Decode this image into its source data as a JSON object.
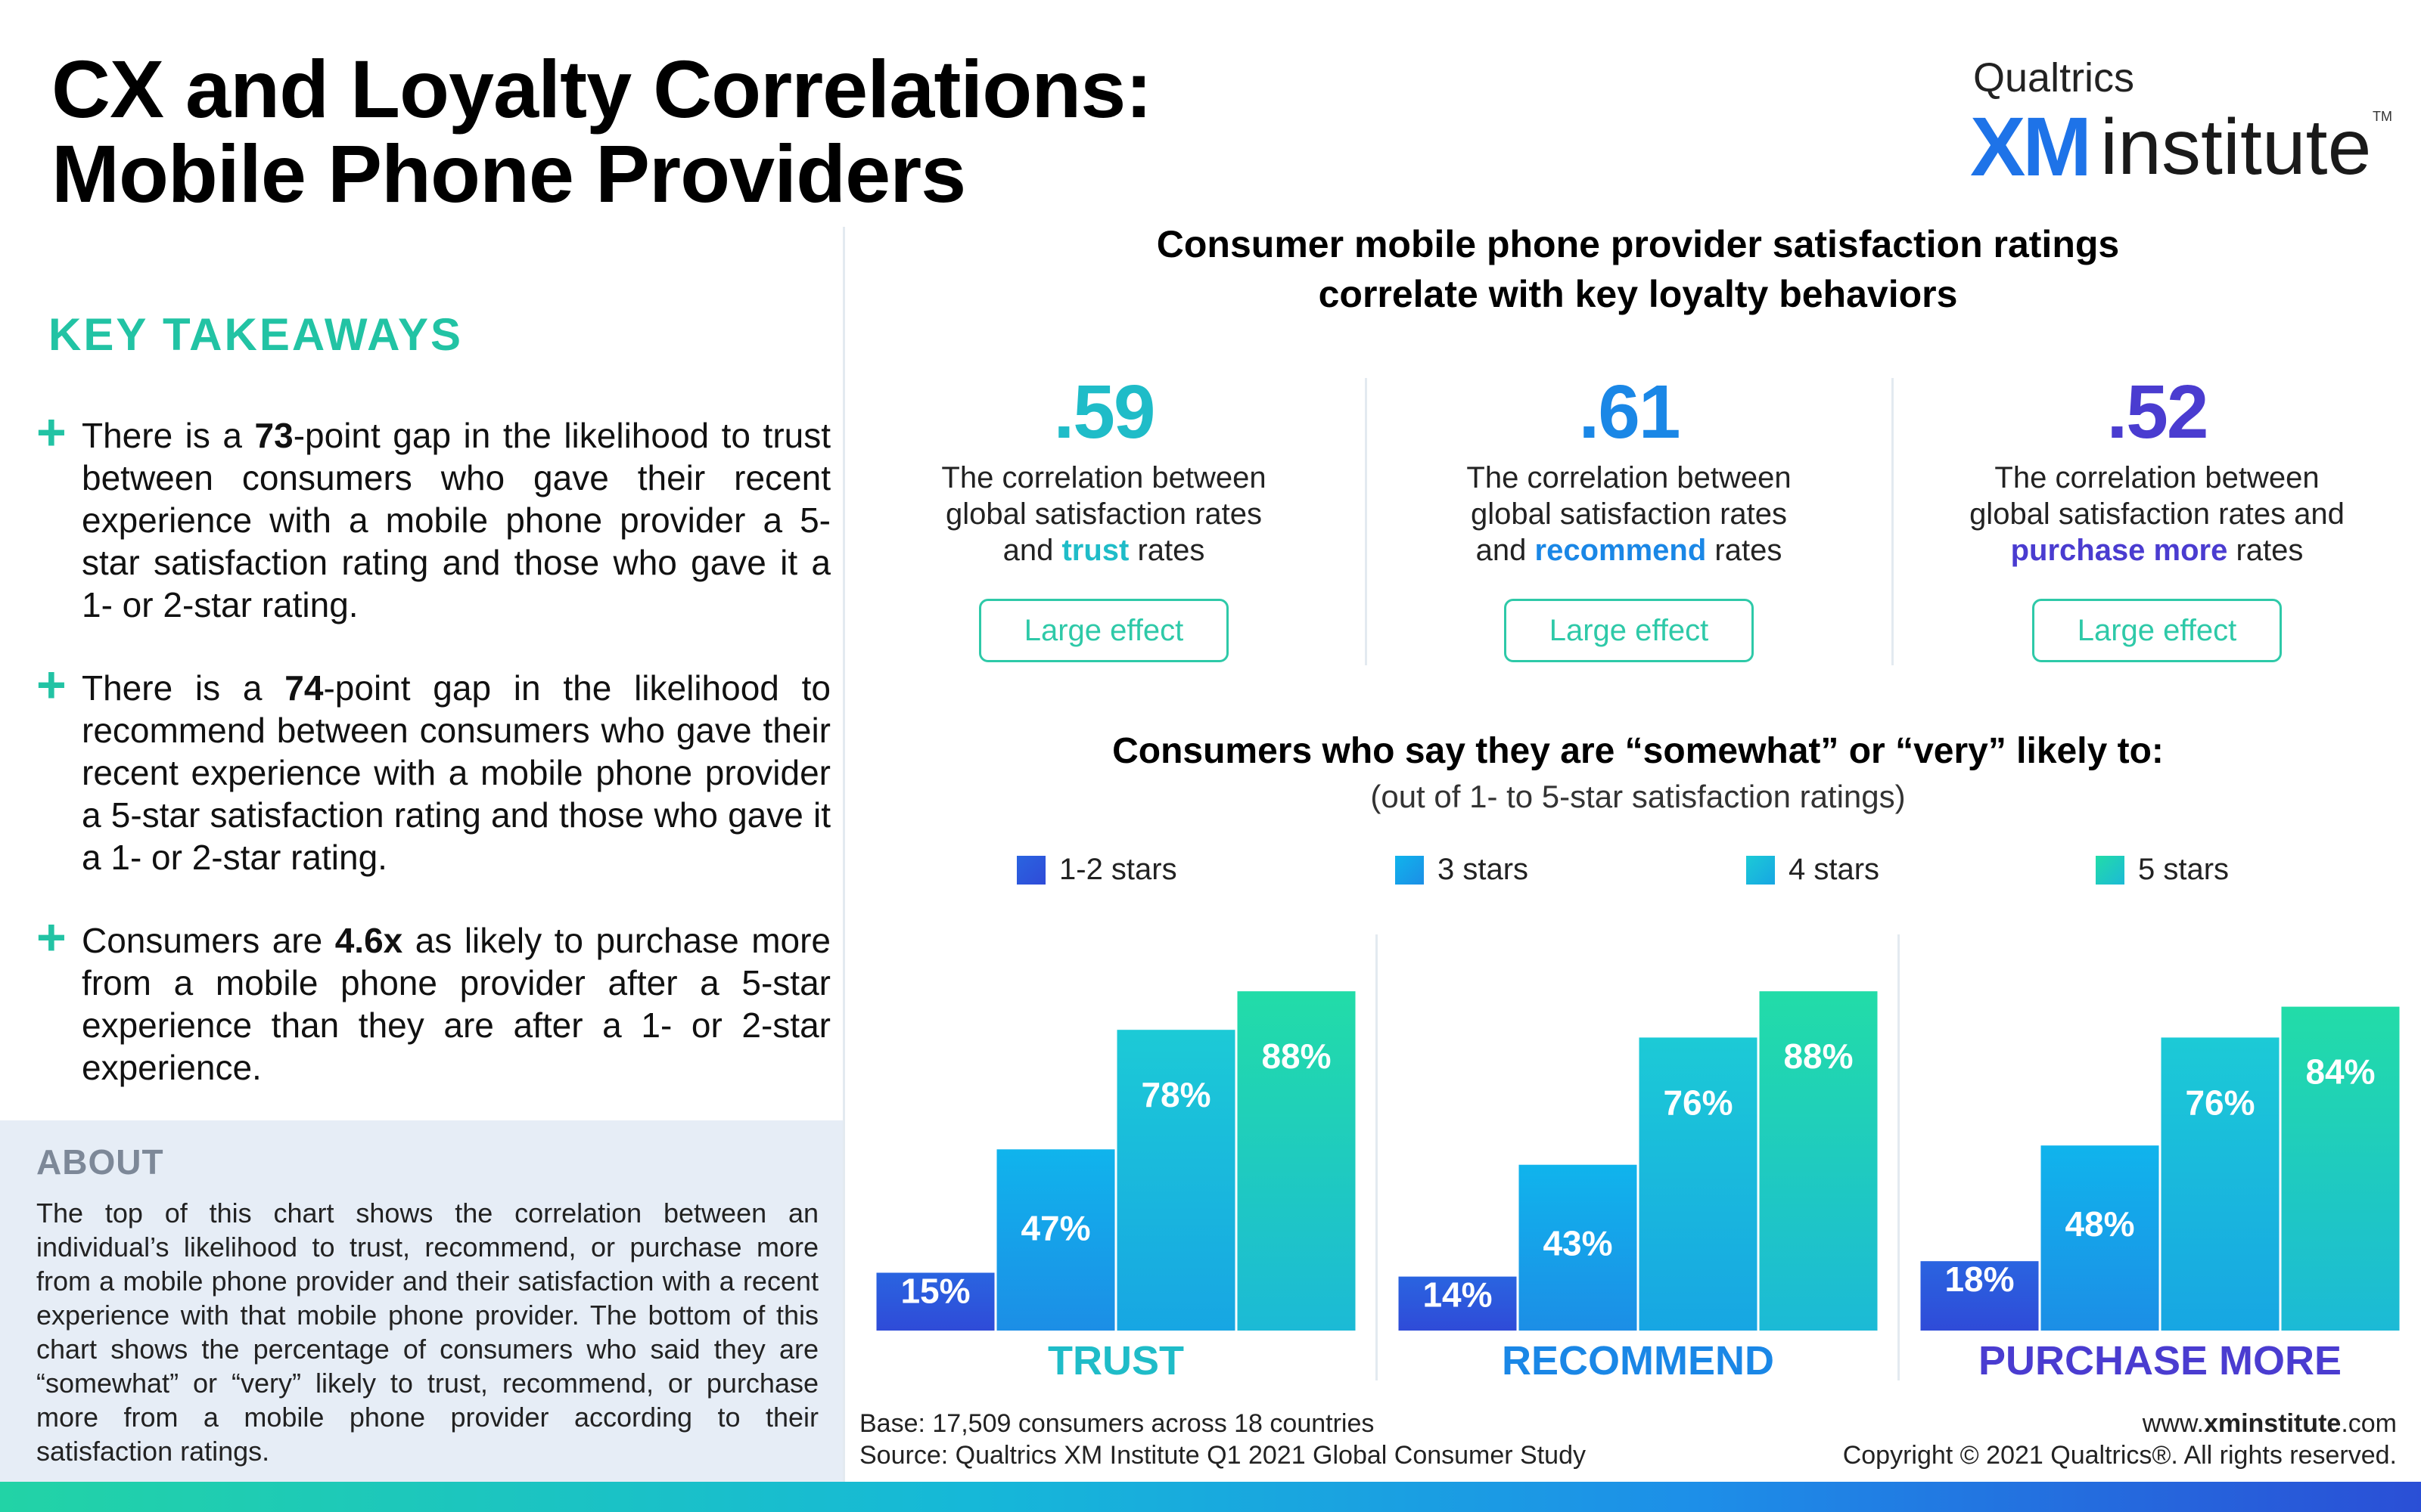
{
  "header": {
    "title_line1": "CX and Loyalty Correlations:",
    "title_line2": "Mobile Phone Providers"
  },
  "logo": {
    "top": "Qualtrics",
    "xm": "XM",
    "institute": "institute",
    "tm": "TM"
  },
  "takeaways": {
    "heading": "KEY TAKEAWAYS",
    "items": [
      {
        "pre": "There is a ",
        "bold": "73",
        "post": "-point gap in the likelihood to trust between consumers who gave their recent experience with a mobile phone provider a 5-star satisfaction rating and those who gave it a 1- or 2-star rating."
      },
      {
        "pre": "There is a ",
        "bold": "74",
        "post": "-point gap in the likelihood to recommend between consumers who gave their recent experience with a mobile phone provider a 5-star satisfaction rating and those who gave it a 1- or 2-star rating."
      },
      {
        "pre": "Consumers are ",
        "bold": "4.6x",
        "post": " as likely to purchase more from a mobile phone provider after a 5-star experience than they are after a 1- or 2-star experience."
      }
    ]
  },
  "about": {
    "heading": "ABOUT",
    "text": "The top of this chart shows the correlation between an individual’s likelihood to trust, recommend, or purchase more from a mobile phone provider and their satisfaction with a recent experience with that mobile phone provider. The bottom of this chart shows the percentage of consumers who said they are “somewhat” or “very” likely to trust, recommend, or purchase more from a mobile phone provider according to their satisfaction ratings."
  },
  "correlations": {
    "heading_line1": "Consumer mobile phone provider satisfaction ratings",
    "heading_line2": "correlate with key loyalty behaviors",
    "items": [
      {
        "value": ".59",
        "desc_line1": "The correlation between",
        "desc_line2": "global satisfaction rates",
        "desc_pre": "and ",
        "keyword": "trust",
        "desc_post": " rates",
        "badge": "Large effect",
        "color": "#1fbcc8"
      },
      {
        "value": ".61",
        "desc_line1": "The correlation between",
        "desc_line2": "global satisfaction rates",
        "desc_pre": "and ",
        "keyword": "recommend",
        "desc_post": " rates",
        "badge": "Large effect",
        "color": "#1a87e6"
      },
      {
        "value": ".52",
        "desc_line1": "The correlation between",
        "desc_line2": "global satisfaction rates and",
        "desc_pre": "",
        "keyword": "purchase more",
        "desc_post": " rates",
        "badge": "Large effect",
        "color": "#4a3cd0"
      }
    ]
  },
  "chart_header": {
    "title": "Consumers who say they are “somewhat” or “very” likely to:",
    "subtitle": "(out of 1- to 5-star satisfaction ratings)"
  },
  "chart_data": {
    "type": "bar",
    "categories": [
      "TRUST",
      "RECOMMEND",
      "PURCHASE MORE"
    ],
    "series": [
      {
        "name": "1-2 stars",
        "values": [
          15,
          14,
          18
        ],
        "color_top": "#2a64e0",
        "color_bottom": "#2f4bd8"
      },
      {
        "name": "3 stars",
        "values": [
          47,
          43,
          48
        ],
        "color_top": "#10b4ec",
        "color_bottom": "#1c8ee6"
      },
      {
        "name": "4 stars",
        "values": [
          78,
          76,
          76
        ],
        "color_top": "#1ccad6",
        "color_bottom": "#17a6e3"
      },
      {
        "name": "5 stars",
        "values": [
          88,
          88,
          84
        ],
        "color_top": "#22dca8",
        "color_bottom": "#1cbad6"
      }
    ],
    "value_suffix": "%",
    "category_colors": [
      "#1fbcc8",
      "#1a87e6",
      "#4a3cd0"
    ],
    "ylim": [
      0,
      100
    ],
    "legend": "top"
  },
  "footer": {
    "base": "Base: 17,509 consumers across 18 countries",
    "source": "Source: Qualtrics XM Institute Q1 2021 Global Consumer Study",
    "url_pre": "www.",
    "url_bold": "xminstitute",
    "url_post": ".com",
    "copyright": "Copyright © 2021 Qualtrics®. All rights reserved."
  }
}
